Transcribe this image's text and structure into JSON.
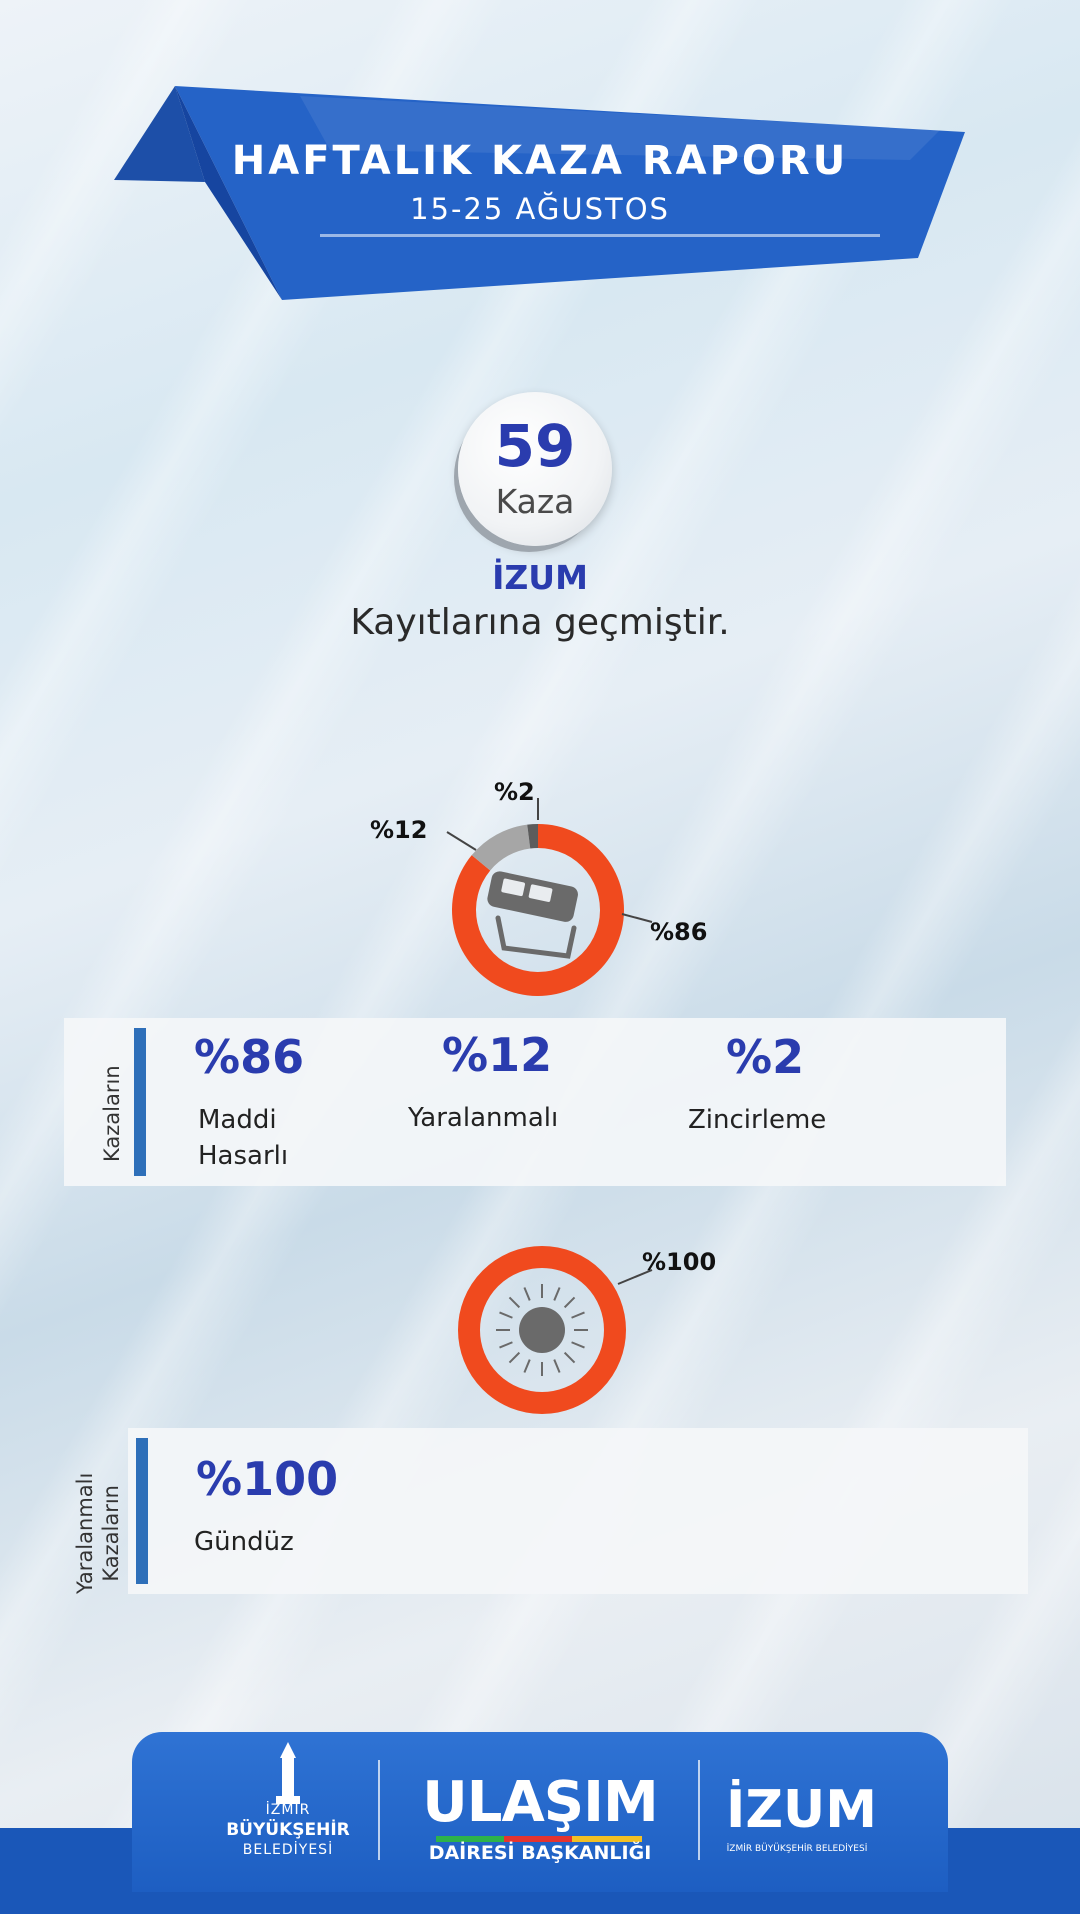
{
  "header": {
    "title": "HAFTALIK KAZA RAPORU",
    "date_range": "15-25  AĞUSTOS"
  },
  "summary": {
    "total_count": "59",
    "count_label": "Kaza",
    "source_name": "İZUM",
    "source_text": "Kayıtlarına geçmiştir."
  },
  "accident_types": {
    "section_label": "Kazaların",
    "chart": {
      "type": "pie",
      "slices": [
        {
          "label": "Maddi Hasarlı",
          "value": 86,
          "color": "#f04a1e"
        },
        {
          "label": "Yaralanmalı",
          "value": 12,
          "color": "#a6a6a6"
        },
        {
          "label": "Zincirleme",
          "value": 2,
          "color": "#5c5c5c"
        }
      ],
      "labels": [
        "%86",
        "%12",
        "%2"
      ]
    },
    "stats": [
      {
        "value": "%86",
        "label_line1": "Maddi",
        "label_line2": "Hasarlı"
      },
      {
        "value": "%12",
        "label_line1": "Yaralanmalı",
        "label_line2": ""
      },
      {
        "value": "%2",
        "label_line1": "Zincirleme",
        "label_line2": ""
      }
    ],
    "icon": "car-crash-icon"
  },
  "injury_time": {
    "section_label_line1": "Yaralanmalı",
    "section_label_line2": "Kazaların",
    "chart": {
      "type": "pie",
      "slices": [
        {
          "label": "Gündüz",
          "value": 100,
          "color": "#f04a1e"
        }
      ],
      "labels": [
        "%100"
      ]
    },
    "stat": {
      "value": "%100",
      "label": "Gündüz"
    },
    "icon": "sun-icon"
  },
  "footer": {
    "ibb_line1": "İZMİR",
    "ibb_line2": "BÜYÜKŞEHİR",
    "ibb_line3": "BELEDİYESİ",
    "ulasim_title": "ULAŞIM",
    "ulasim_sub": "DAİRESİ BAŞKANLIĞI",
    "izum_title": "İZUM",
    "izum_sub": "İZMİR BÜYÜKŞEHİR BELEDİYESİ",
    "brand_color": "#1d5ec2"
  }
}
